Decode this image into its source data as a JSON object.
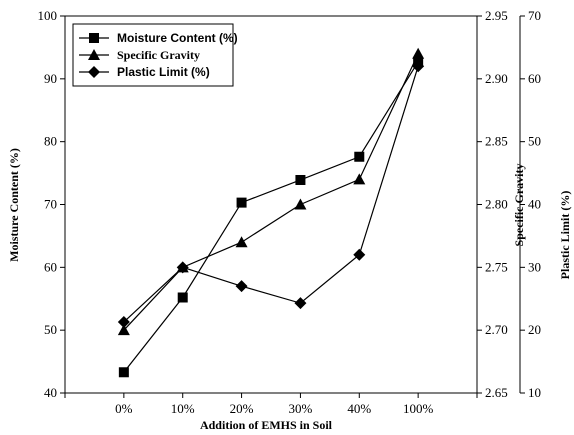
{
  "chart_data": {
    "type": "line",
    "categories": [
      "0%",
      "10%",
      "20%",
      "30%",
      "40%",
      "100%"
    ],
    "xlabel": "Addition of EMHS in Soil",
    "axes": {
      "left": {
        "label": "Moisture Content (%)",
        "range": [
          40,
          100
        ],
        "ticks": [
          "40",
          "50",
          "60",
          "70",
          "80",
          "90",
          "100"
        ]
      },
      "right1": {
        "label": "Specific Gravity",
        "range": [
          2.65,
          2.95
        ],
        "ticks": [
          "2.65",
          "2.70",
          "2.75",
          "2.80",
          "2.85",
          "2.90",
          "2.95"
        ]
      },
      "right2": {
        "label": "Plastic Limit (%)",
        "range": [
          10,
          70
        ],
        "ticks": [
          "10",
          "20",
          "30",
          "40",
          "50",
          "60",
          "70"
        ]
      }
    },
    "series": [
      {
        "name": "Moisture Content (%)",
        "axis": "left",
        "marker": "square",
        "values": [
          43.3,
          55.2,
          70.3,
          73.9,
          77.6,
          92.7
        ]
      },
      {
        "name": "Specific Gravity",
        "axis": "right1",
        "marker": "triangle",
        "values": [
          2.7,
          2.75,
          2.77,
          2.8,
          2.82,
          2.92
        ]
      },
      {
        "name": "Plastic Limit (%)",
        "axis": "right2",
        "marker": "diamond",
        "values": [
          21.3,
          30.0,
          27.0,
          24.3,
          32.0,
          62.0
        ]
      }
    ],
    "legend_position": "top-left",
    "grid": false
  }
}
